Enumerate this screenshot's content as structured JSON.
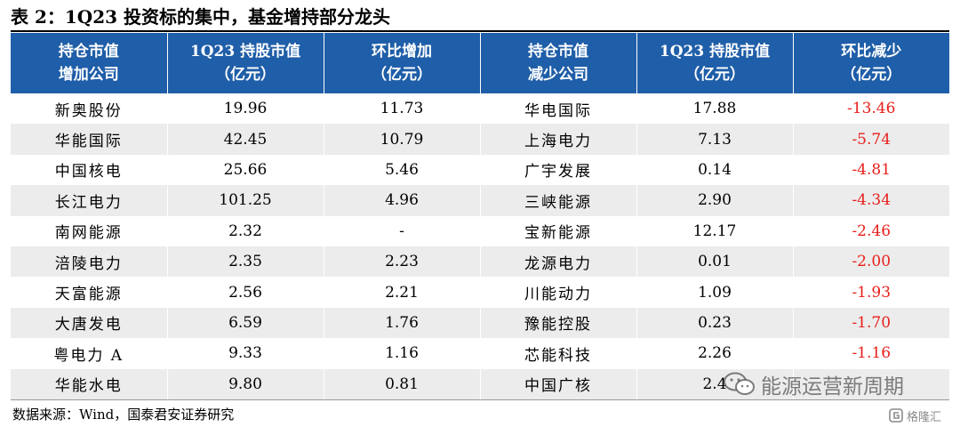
{
  "title": "表 2：1Q23 投资标的集中，基金增持部分龙头",
  "headers": [
    {
      "line1": "持仓市值",
      "line2": "增加公司"
    },
    {
      "line1": "1Q23 持股市值",
      "line2": "（亿元）"
    },
    {
      "line1": "环比增加",
      "line2": "（亿元）"
    },
    {
      "line1": "持仓市值",
      "line2": "减少公司"
    },
    {
      "line1": "1Q23 持股市值",
      "line2": "（亿元）"
    },
    {
      "line1": "环比减少",
      "line2": "（亿元）"
    }
  ],
  "rows": [
    {
      "inc_name": "新奥股份",
      "inc_value": "19.96",
      "inc_change": "11.73",
      "dec_name": "华电国际",
      "dec_value": "17.88",
      "dec_change": "-13.46"
    },
    {
      "inc_name": "华能国际",
      "inc_value": "42.45",
      "inc_change": "10.79",
      "dec_name": "上海电力",
      "dec_value": "7.13",
      "dec_change": "-5.74"
    },
    {
      "inc_name": "中国核电",
      "inc_value": "25.66",
      "inc_change": "5.46",
      "dec_name": "广宇发展",
      "dec_value": "0.14",
      "dec_change": "-4.81"
    },
    {
      "inc_name": "长江电力",
      "inc_value": "101.25",
      "inc_change": "4.96",
      "dec_name": "三峡能源",
      "dec_value": "2.90",
      "dec_change": "-4.34"
    },
    {
      "inc_name": "南网能源",
      "inc_value": "2.32",
      "inc_change": "-",
      "dec_name": "宝新能源",
      "dec_value": "12.17",
      "dec_change": "-2.46"
    },
    {
      "inc_name": "涪陵电力",
      "inc_value": "2.35",
      "inc_change": "2.23",
      "dec_name": "龙源电力",
      "dec_value": "0.01",
      "dec_change": "-2.00"
    },
    {
      "inc_name": "天富能源",
      "inc_value": "2.56",
      "inc_change": "2.21",
      "dec_name": "川能动力",
      "dec_value": "1.09",
      "dec_change": "-1.93"
    },
    {
      "inc_name": "大唐发电",
      "inc_value": "6.59",
      "inc_change": "1.76",
      "dec_name": "豫能控股",
      "dec_value": "0.23",
      "dec_change": "-1.70"
    },
    {
      "inc_name": "粤电力 A",
      "inc_value": "9.33",
      "inc_change": "1.16",
      "dec_name": "芯能科技",
      "dec_value": "2.26",
      "dec_change": "-1.16"
    },
    {
      "inc_name": "华能水电",
      "inc_value": "9.80",
      "inc_change": "0.81",
      "dec_name": "中国广核",
      "dec_value": "2.4",
      "dec_change": ""
    }
  ],
  "source": "数据来源：Wind，国泰君安证券研究",
  "watermark": {
    "text": "能源运营新周期",
    "icon": "wechat-icon"
  },
  "brand": {
    "text": "格隆汇",
    "icon": "gelonghui-logo-icon"
  },
  "colors": {
    "header_bg": "#1f5ea8",
    "header_text": "#ffffff",
    "stripe": "#ececec",
    "negative": "#e8201c"
  }
}
